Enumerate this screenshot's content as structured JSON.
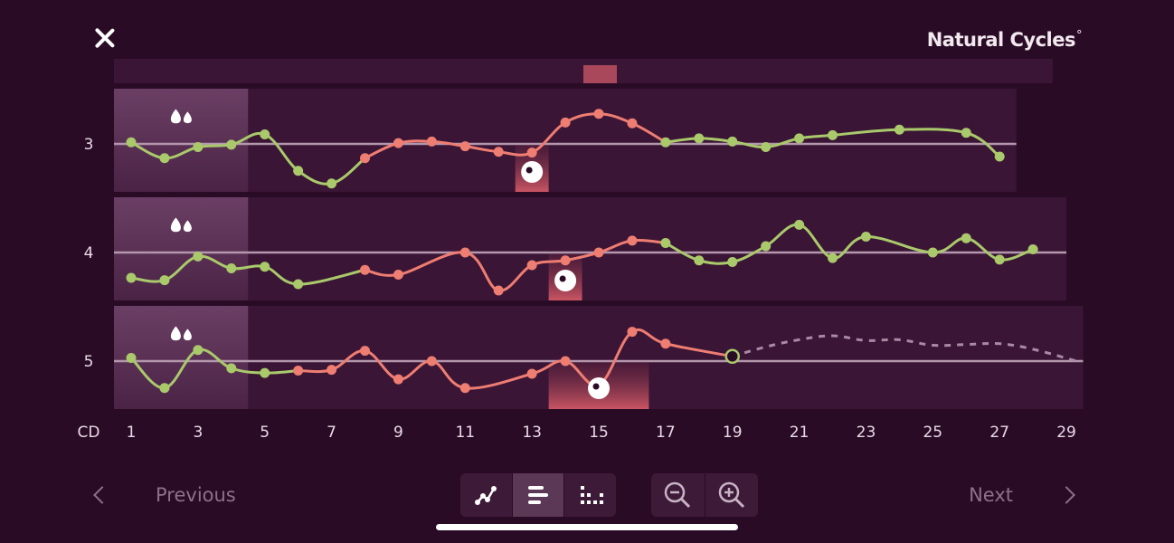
{
  "header": {
    "close_icon": "close-icon",
    "brand": "Natural Cycles",
    "brand_mark": "°"
  },
  "chart_data": {
    "type": "line",
    "x_axis_label": "CD",
    "x_ticks": [
      1,
      3,
      5,
      7,
      9,
      11,
      13,
      15,
      17,
      19,
      21,
      23,
      25,
      27,
      29
    ],
    "xlim": [
      1,
      29
    ],
    "colors": {
      "infertile": "#a9c96b",
      "fertile": "#ee7d72",
      "baseline": "#b497ad",
      "row_bg": "#3a1535",
      "period_bg": "#6b3f65",
      "predicted": "#a98aa4"
    },
    "rows": [
      {
        "label": "3",
        "xmax": 27.5,
        "period_days": 4,
        "ovulation_day": 13,
        "values": [
          0.1,
          -0.9,
          -0.2,
          -0.05,
          0.6,
          -1.7,
          -2.5,
          -0.9,
          0.05,
          0.15,
          -0.15,
          -0.5,
          -0.55,
          1.35,
          1.9,
          1.3,
          0.1,
          0.35,
          0.15,
          -0.2,
          0.35,
          0.55,
          null,
          0.9,
          null,
          0.7,
          -0.8
        ],
        "fertile_days": [
          8,
          9,
          10,
          11,
          12,
          13,
          14,
          15,
          16
        ]
      },
      {
        "label": "4",
        "xmax": 29,
        "period_days": 4,
        "ovulation_day": 14,
        "values": [
          -1.6,
          -1.75,
          -0.25,
          -1.0,
          -0.9,
          -2.0,
          null,
          -1.1,
          -1.4,
          null,
          0,
          -2.4,
          -0.8,
          -0.5,
          0,
          0.75,
          0.6,
          -0.5,
          -0.6,
          0.4,
          1.75,
          -0.35,
          1.0,
          null,
          0,
          0.9,
          -0.45,
          0.2
        ],
        "fertile_days": [
          7,
          8,
          9,
          10,
          11,
          12,
          13,
          14,
          15,
          16
        ]
      },
      {
        "label": "5",
        "xmax": 29.5,
        "period_days": 4,
        "ovulation_day": 15,
        "values": [
          0.2,
          -1.7,
          0.7,
          -0.45,
          -0.75,
          -0.6,
          -0.55,
          0.65,
          -1.15,
          0,
          -1.7,
          null,
          -0.8,
          0,
          -1.5,
          1.85,
          1.1,
          null,
          0.3
        ],
        "fertile_days": [
          6,
          7,
          8,
          9,
          10,
          11,
          12,
          13,
          14,
          15,
          16,
          17
        ],
        "today_day": 19,
        "predicted": [
          [
            19,
            0.3
          ],
          [
            20,
            0.9
          ],
          [
            21,
            1.35
          ],
          [
            22,
            1.6
          ],
          [
            23,
            1.3
          ],
          [
            24,
            1.35
          ],
          [
            25,
            1.0
          ],
          [
            26,
            1.05
          ],
          [
            27,
            1.1
          ],
          [
            28,
            0.75
          ],
          [
            29.3,
            0
          ]
        ]
      }
    ]
  },
  "footer": {
    "previous_label": "Previous",
    "next_label": "Next",
    "view_buttons": [
      "line-chart-icon",
      "bars-icon",
      "dots-grid-icon"
    ],
    "active_view": 1,
    "zoom_buttons": [
      "zoom-out-icon",
      "zoom-in-icon"
    ]
  }
}
